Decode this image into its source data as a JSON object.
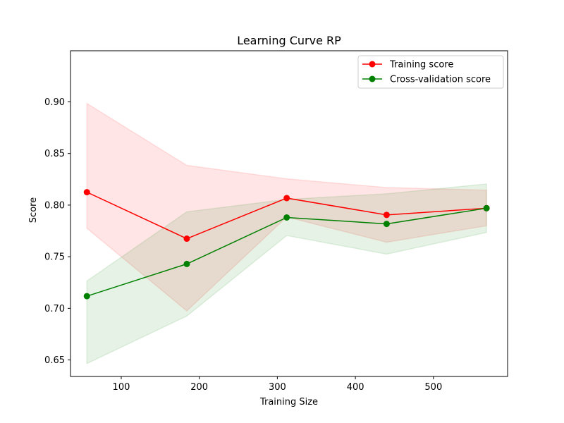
{
  "chart_data": {
    "type": "line",
    "title": "Learning Curve RP",
    "xlabel": "Training Size",
    "ylabel": "Score",
    "xlim": [
      35,
      595
    ],
    "ylim": [
      0.634,
      0.9495
    ],
    "x_ticks": [
      100,
      200,
      300,
      400,
      500
    ],
    "y_ticks": [
      0.65,
      0.7,
      0.75,
      0.8,
      0.85,
      0.9
    ],
    "x_tick_labels": [
      "100",
      "200",
      "300",
      "400",
      "500"
    ],
    "y_tick_labels": [
      "0.65",
      "0.70",
      "0.75",
      "0.80",
      "0.85",
      "0.90"
    ],
    "grid": false,
    "legend_position": "top-right",
    "x": [
      56,
      184,
      312,
      440,
      568
    ],
    "series": [
      {
        "name": "Training score",
        "color": "#ff0000",
        "values": [
          0.8125,
          0.7675,
          0.8068,
          0.7905,
          0.797
        ],
        "band_lower": [
          0.7775,
          0.6975,
          0.7885,
          0.764,
          0.78
        ],
        "band_upper": [
          0.8985,
          0.8385,
          0.8255,
          0.817,
          0.8145
        ]
      },
      {
        "name": "Cross-validation score",
        "color": "#008000",
        "values": [
          0.7118,
          0.743,
          0.788,
          0.7818,
          0.797
        ],
        "band_lower": [
          0.6465,
          0.6925,
          0.7705,
          0.7525,
          0.7735
        ],
        "band_upper": [
          0.7265,
          0.7935,
          0.8055,
          0.811,
          0.8205
        ]
      }
    ]
  }
}
